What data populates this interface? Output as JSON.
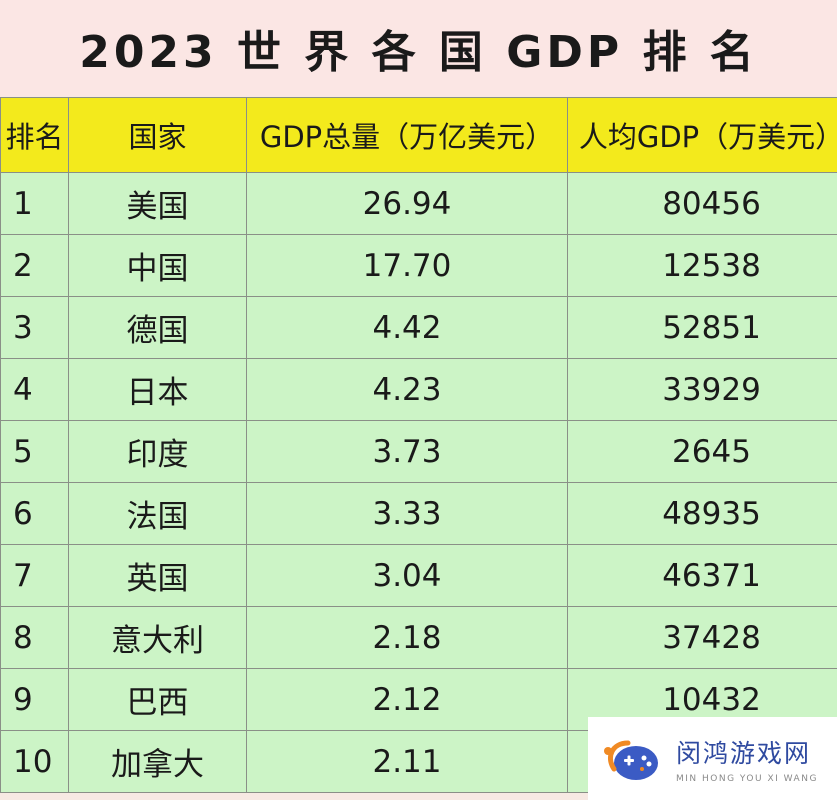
{
  "title": "2023 世 界 各 国 GDP 排 名",
  "table": {
    "headers": [
      "排名",
      "国家",
      "GDP总量（万亿美元）",
      "人均GDP（万美元）"
    ],
    "rows": [
      {
        "rank": "1",
        "country": "美国",
        "gdp": "26.94",
        "per_capita": "80456"
      },
      {
        "rank": "2",
        "country": "中国",
        "gdp": "17.70",
        "per_capita": "12538"
      },
      {
        "rank": "3",
        "country": "德国",
        "gdp": "4.42",
        "per_capita": "52851"
      },
      {
        "rank": "4",
        "country": "日本",
        "gdp": "4.23",
        "per_capita": "33929"
      },
      {
        "rank": "5",
        "country": "印度",
        "gdp": "3.73",
        "per_capita": "2645"
      },
      {
        "rank": "6",
        "country": "法国",
        "gdp": "3.33",
        "per_capita": "48935"
      },
      {
        "rank": "7",
        "country": "英国",
        "gdp": "3.04",
        "per_capita": "46371"
      },
      {
        "rank": "8",
        "country": "意大利",
        "gdp": "2.18",
        "per_capita": "37428"
      },
      {
        "rank": "9",
        "country": "巴西",
        "gdp": "2.12",
        "per_capita": "10432"
      },
      {
        "rank": "10",
        "country": "加拿大",
        "gdp": "2.11",
        "per_capita": ""
      }
    ]
  },
  "watermark": {
    "name": "闵鸿游戏网",
    "pinyin": "MIN HONG YOU XI WANG"
  },
  "colors": {
    "title_bg": "#fbe6e4",
    "header_bg": "#f3ea1c",
    "row_bg": "#ccf4c6",
    "border": "#8a8f87",
    "watermark_text": "#2f4aa0"
  }
}
